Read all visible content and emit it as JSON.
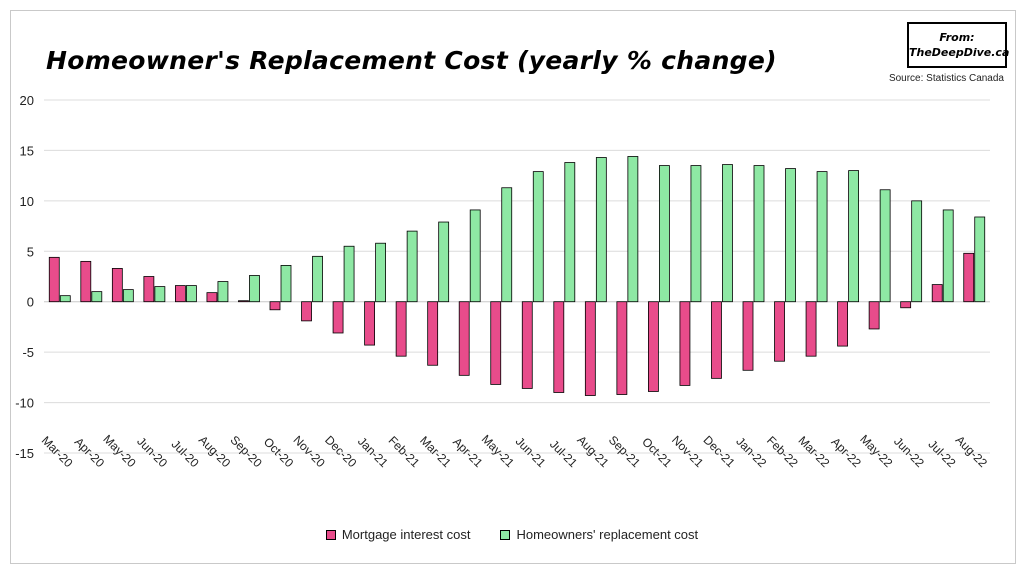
{
  "chart_data": {
    "type": "bar",
    "title": "Homeowner's Replacement Cost (yearly % change)",
    "badge": "From: TheDeepDive.ca",
    "source": "Source: Statistics Canada",
    "categories": [
      "Mar-20",
      "Apr-20",
      "May-20",
      "Jun-20",
      "Jul-20",
      "Aug-20",
      "Sep-20",
      "Oct-20",
      "Nov-20",
      "Dec-20",
      "Jan-21",
      "Feb-21",
      "Mar-21",
      "Apr-21",
      "May-21",
      "Jun-21",
      "Jul-21",
      "Aug-21",
      "Sep-21",
      "Oct-21",
      "Nov-21",
      "Dec-21",
      "Jan-22",
      "Feb-22",
      "Mar-22",
      "Apr-22",
      "May-22",
      "Jun-22",
      "Jul-22",
      "Aug-22"
    ],
    "series": [
      {
        "name": "Mortgage interest cost",
        "color": "#e84c8b",
        "values": [
          4.4,
          4.0,
          3.3,
          2.5,
          1.6,
          0.9,
          0.1,
          -0.8,
          -1.9,
          -3.1,
          -4.3,
          -5.4,
          -6.3,
          -7.3,
          -8.2,
          -8.6,
          -9.0,
          -9.3,
          -9.2,
          -8.9,
          -8.3,
          -7.6,
          -6.8,
          -5.9,
          -5.4,
          -4.4,
          -2.7,
          -0.6,
          1.7,
          4.8
        ]
      },
      {
        "name": "Homeowners' replacement cost",
        "color": "#8ee8a4",
        "values": [
          0.6,
          1.0,
          1.2,
          1.5,
          1.6,
          2.0,
          2.6,
          3.6,
          4.5,
          5.5,
          5.8,
          7.0,
          7.9,
          9.1,
          11.3,
          12.9,
          13.8,
          14.3,
          14.4,
          13.5,
          13.5,
          13.6,
          13.5,
          13.2,
          12.9,
          13.0,
          11.1,
          10.0,
          9.1,
          8.4
        ]
      }
    ],
    "ylim": [
      -15,
      20
    ],
    "yticks": [
      -15,
      -10,
      -5,
      0,
      5,
      10,
      15,
      20
    ],
    "grid": true,
    "legend_position": "bottom"
  }
}
